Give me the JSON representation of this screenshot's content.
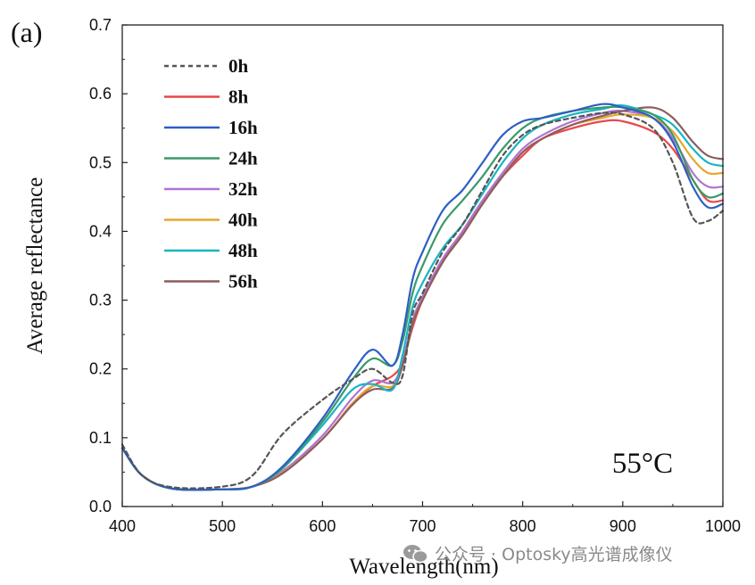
{
  "panel_label": "(a)",
  "temperature_label": "55°C",
  "watermark": "公众号 · Optosky高光谱成像仪",
  "watermark_icon": "wechat-icon",
  "chart_data": {
    "type": "line",
    "xlabel": "Wavelength(nm)",
    "ylabel": "Average reflectance",
    "xlim": [
      400,
      1000
    ],
    "ylim": [
      0.0,
      0.7
    ],
    "xticks": [
      "400",
      "500",
      "600",
      "700",
      "800",
      "900",
      "1000"
    ],
    "yticks": [
      "0.0",
      "0.1",
      "0.2",
      "0.3",
      "0.4",
      "0.5",
      "0.6",
      "0.7"
    ],
    "legend_position": "top-left",
    "x": [
      400,
      420,
      450,
      500,
      530,
      560,
      600,
      630,
      650,
      670,
      680,
      690,
      700,
      720,
      740,
      760,
      780,
      800,
      820,
      850,
      880,
      900,
      930,
      950,
      970,
      985,
      1000
    ],
    "series": [
      {
        "name": "0h",
        "color": "#555555",
        "dash": true,
        "values": [
          0.09,
          0.045,
          0.028,
          0.029,
          0.045,
          0.105,
          0.155,
          0.185,
          0.2,
          0.18,
          0.19,
          0.28,
          0.31,
          0.37,
          0.41,
          0.46,
          0.51,
          0.54,
          0.555,
          0.565,
          0.572,
          0.57,
          0.55,
          0.5,
          0.42,
          0.415,
          0.43
        ]
      },
      {
        "name": "8h",
        "color": "#e8474c",
        "values": [
          0.085,
          0.045,
          0.026,
          0.025,
          0.029,
          0.05,
          0.098,
          0.15,
          0.175,
          0.19,
          0.21,
          0.26,
          0.3,
          0.355,
          0.4,
          0.445,
          0.48,
          0.51,
          0.535,
          0.55,
          0.56,
          0.56,
          0.545,
          0.52,
          0.475,
          0.445,
          0.445
        ]
      },
      {
        "name": "16h",
        "color": "#2d5fc4",
        "values": [
          0.085,
          0.045,
          0.026,
          0.025,
          0.029,
          0.058,
          0.128,
          0.195,
          0.228,
          0.205,
          0.25,
          0.33,
          0.37,
          0.43,
          0.46,
          0.5,
          0.54,
          0.56,
          0.565,
          0.575,
          0.585,
          0.58,
          0.565,
          0.53,
          0.465,
          0.435,
          0.44
        ]
      },
      {
        "name": "24h",
        "color": "#3a9a68",
        "values": [
          0.085,
          0.045,
          0.026,
          0.025,
          0.029,
          0.056,
          0.123,
          0.185,
          0.215,
          0.205,
          0.24,
          0.31,
          0.35,
          0.41,
          0.445,
          0.48,
          0.52,
          0.55,
          0.565,
          0.575,
          0.58,
          0.58,
          0.57,
          0.54,
          0.475,
          0.45,
          0.455
        ]
      },
      {
        "name": "32h",
        "color": "#b273d4",
        "values": [
          0.085,
          0.045,
          0.026,
          0.025,
          0.029,
          0.051,
          0.103,
          0.158,
          0.183,
          0.18,
          0.21,
          0.27,
          0.305,
          0.36,
          0.4,
          0.445,
          0.485,
          0.52,
          0.54,
          0.56,
          0.572,
          0.575,
          0.565,
          0.535,
          0.485,
          0.465,
          0.465
        ]
      },
      {
        "name": "40h",
        "color": "#e4a72d",
        "values": [
          0.085,
          0.045,
          0.026,
          0.025,
          0.029,
          0.049,
          0.098,
          0.15,
          0.175,
          0.175,
          0.205,
          0.265,
          0.3,
          0.355,
          0.395,
          0.44,
          0.48,
          0.515,
          0.535,
          0.555,
          0.565,
          0.57,
          0.565,
          0.545,
          0.505,
          0.485,
          0.485
        ]
      },
      {
        "name": "48h",
        "color": "#18b5c4",
        "values": [
          0.085,
          0.045,
          0.026,
          0.025,
          0.029,
          0.055,
          0.118,
          0.17,
          0.178,
          0.17,
          0.22,
          0.29,
          0.325,
          0.375,
          0.41,
          0.455,
          0.5,
          0.535,
          0.555,
          0.57,
          0.578,
          0.583,
          0.57,
          0.555,
          0.52,
          0.5,
          0.495
        ]
      },
      {
        "name": "56h",
        "color": "#8c5d5d",
        "values": [
          0.085,
          0.045,
          0.026,
          0.025,
          0.029,
          0.048,
          0.098,
          0.148,
          0.17,
          0.172,
          0.205,
          0.265,
          0.3,
          0.355,
          0.395,
          0.44,
          0.48,
          0.515,
          0.535,
          0.555,
          0.568,
          0.575,
          0.58,
          0.565,
          0.53,
          0.51,
          0.505
        ]
      }
    ]
  }
}
